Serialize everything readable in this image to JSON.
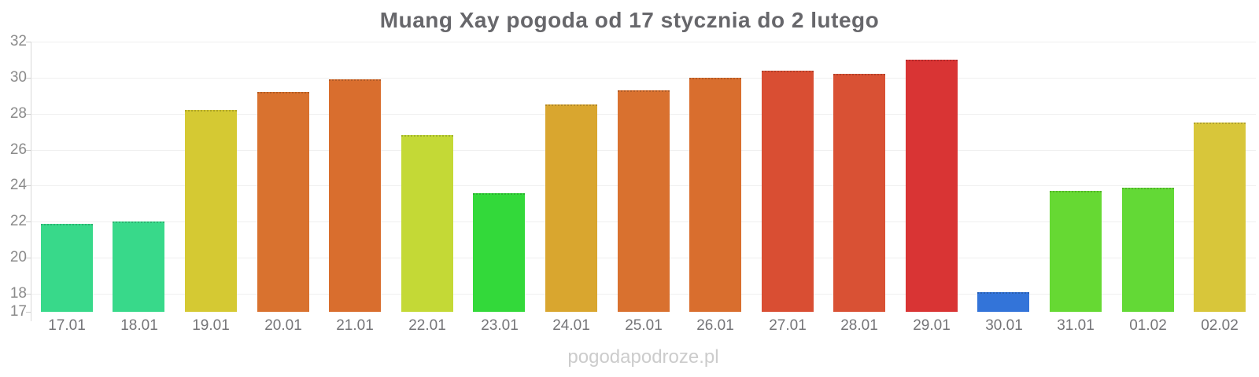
{
  "watermark": {
    "text": "pogodapodroze.pl"
  },
  "chart_data": {
    "type": "bar",
    "title": "Muang Xay pogoda od 17 stycznia do 2 lutego",
    "xlabel": "",
    "ylabel": "",
    "categories": [
      "17.01",
      "18.01",
      "19.01",
      "20.01",
      "21.01",
      "22.01",
      "23.01",
      "24.01",
      "25.01",
      "26.01",
      "27.01",
      "28.01",
      "29.01",
      "30.01",
      "31.01",
      "01.02",
      "02.02"
    ],
    "values": [
      21.9,
      22.0,
      28.2,
      29.2,
      29.9,
      26.8,
      23.6,
      28.5,
      29.3,
      30.0,
      30.4,
      30.2,
      31.0,
      18.1,
      23.7,
      23.9,
      27.5
    ],
    "bar_colors": [
      "#38d98a",
      "#38d98a",
      "#d5c933",
      "#d9722f",
      "#d96e2e",
      "#c4d936",
      "#33d93a",
      "#d9a62f",
      "#d9712f",
      "#d96e2e",
      "#d94e33",
      "#d95134",
      "#d93434",
      "#3374d9",
      "#66d933",
      "#63d936",
      "#d8c63a"
    ],
    "ylim": [
      17,
      32
    ],
    "yticks": [
      32,
      30,
      28,
      26,
      24,
      22,
      20,
      18,
      17
    ],
    "grid": true,
    "legend": "none"
  }
}
